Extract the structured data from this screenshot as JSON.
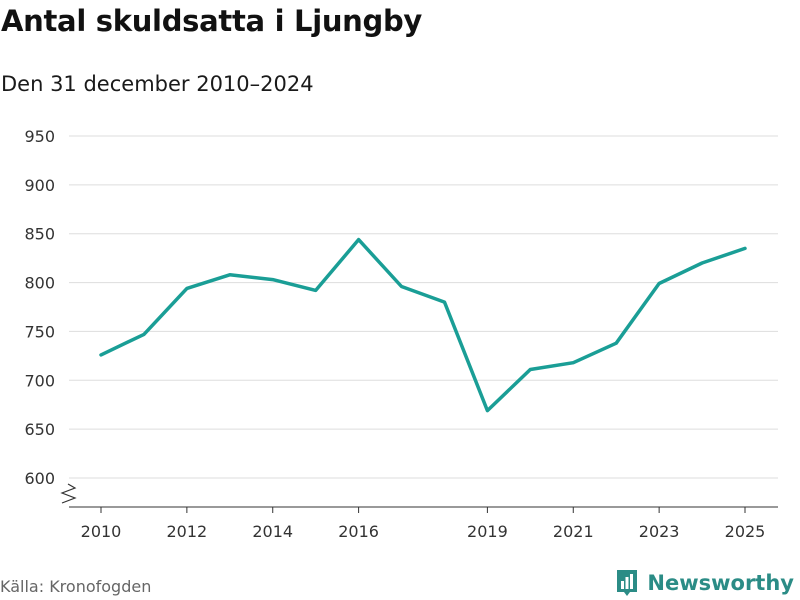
{
  "header": {
    "title": "Antal skuldsatta i Ljungby",
    "subtitle": "Den 31 december 2010–2024"
  },
  "footer": {
    "source": "Källa: Kronofogden",
    "brand": "Newsworthy",
    "brand_icon": "bar-chart-logo-icon",
    "brand_color": "#2b8c86"
  },
  "chart_data": {
    "type": "line",
    "title": "Antal skuldsatta i Ljungby",
    "subtitle": "Den 31 december 2010–2024",
    "xlabel": "",
    "ylabel": "",
    "x": [
      2010,
      2011,
      2012,
      2013,
      2014,
      2015,
      2016,
      2017,
      2018,
      2019,
      2020,
      2021,
      2022,
      2023,
      2024,
      2025
    ],
    "series": [
      {
        "name": "Antal skuldsatta",
        "color": "#1a9e96",
        "values": [
          726,
          747,
          794,
          808,
          803,
          792,
          844,
          796,
          780,
          669,
          711,
          718,
          738,
          799,
          820,
          835
        ]
      }
    ],
    "x_ticks": [
      2010,
      2012,
      2014,
      2016,
      2019,
      2021,
      2023,
      2025
    ],
    "x_tick_labels": [
      "2010",
      "2012",
      "2014",
      "2016",
      "2019",
      "2021",
      "2023",
      "2025"
    ],
    "y_ticks": [
      600,
      650,
      700,
      750,
      800,
      850,
      900,
      950
    ],
    "y_tick_labels": [
      "600",
      "650",
      "700",
      "750",
      "800",
      "850",
      "900",
      "950"
    ],
    "ylim": [
      600,
      950
    ],
    "y_axis_break": true,
    "grid": true,
    "colors": {
      "grid": "#dddddd",
      "axis": "#333333",
      "line": "#1a9e96"
    }
  }
}
